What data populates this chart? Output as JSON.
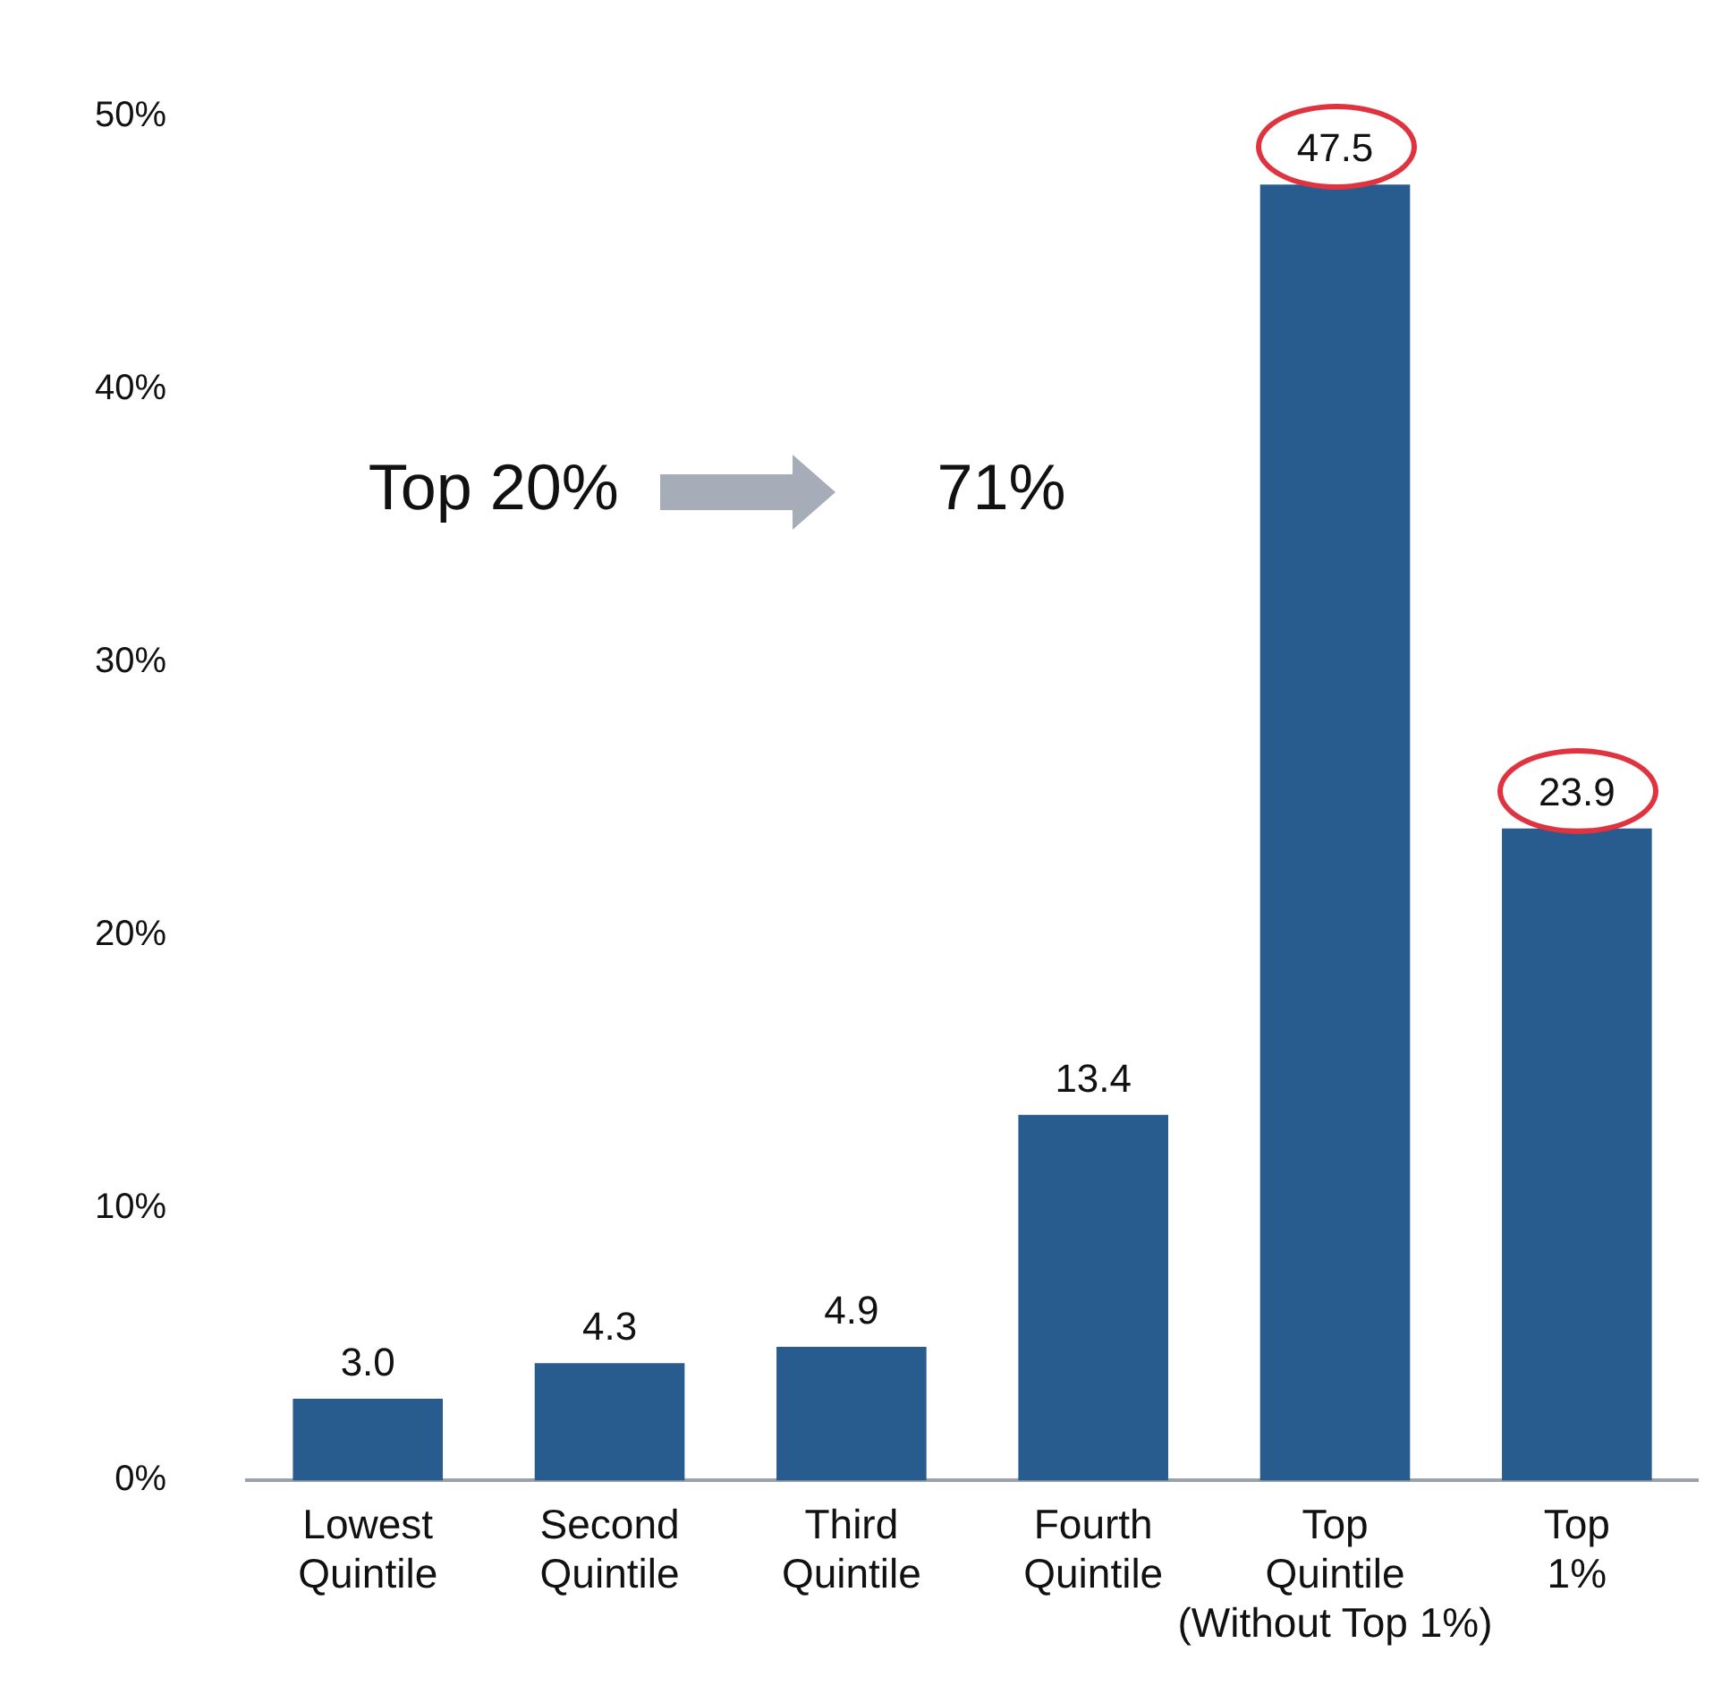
{
  "chart_data": {
    "type": "bar",
    "categories": [
      "Lowest\nQuintile",
      "Second\nQuintile",
      "Third\nQuintile",
      "Fourth\nQuintile",
      "Top\nQuintile\n(Without Top 1%)",
      "Top\n1%"
    ],
    "values": [
      3.0,
      4.3,
      4.9,
      13.4,
      47.5,
      23.9
    ],
    "color": "#285c8f",
    "ylim": [
      0,
      50
    ],
    "yticks": [
      {
        "value": 0,
        "label": "0%"
      },
      {
        "value": 10,
        "label": "10%"
      },
      {
        "value": 20,
        "label": "20%"
      },
      {
        "value": 30,
        "label": "30%"
      },
      {
        "value": 40,
        "label": "40%"
      },
      {
        "value": 50,
        "label": "50%"
      }
    ],
    "grid": false,
    "legend": false,
    "value_labels": [
      "3.0",
      "4.3",
      "4.9",
      "13.4",
      "47.5",
      "23.9"
    ],
    "annotations": [
      "Top 20%",
      "71%"
    ]
  }
}
